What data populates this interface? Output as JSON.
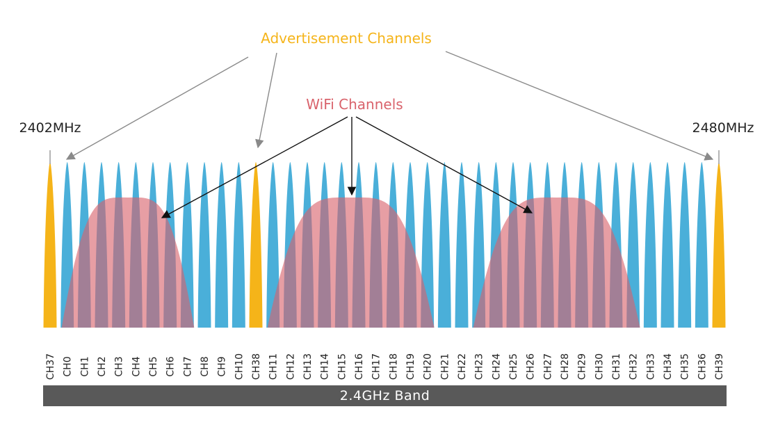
{
  "labels": {
    "advertisement": "Advertisement Channels",
    "wifi": "WiFi Channels",
    "freq_left": "2402MHz",
    "freq_right": "2480MHz",
    "band": "2.4GHz Band"
  },
  "colors": {
    "advertisement": "#f5b419",
    "data_channel": "#4aafd9",
    "wifi": "#8a4a60",
    "wifi_label": "#d9636c",
    "band_bar": "#595959",
    "text": "#222222"
  },
  "channels": [
    {
      "label": "CH37",
      "type": "advertisement"
    },
    {
      "label": "CH0",
      "type": "data"
    },
    {
      "label": "CH1",
      "type": "data"
    },
    {
      "label": "CH2",
      "type": "data"
    },
    {
      "label": "CH3",
      "type": "data"
    },
    {
      "label": "CH4",
      "type": "data"
    },
    {
      "label": "CH5",
      "type": "data"
    },
    {
      "label": "CH6",
      "type": "data"
    },
    {
      "label": "CH7",
      "type": "data"
    },
    {
      "label": "CH8",
      "type": "data"
    },
    {
      "label": "CH9",
      "type": "data"
    },
    {
      "label": "CH10",
      "type": "data"
    },
    {
      "label": "CH38",
      "type": "advertisement"
    },
    {
      "label": "CH11",
      "type": "data"
    },
    {
      "label": "CH12",
      "type": "data"
    },
    {
      "label": "CH13",
      "type": "data"
    },
    {
      "label": "CH14",
      "type": "data"
    },
    {
      "label": "CH15",
      "type": "data"
    },
    {
      "label": "CH16",
      "type": "data"
    },
    {
      "label": "CH17",
      "type": "data"
    },
    {
      "label": "CH18",
      "type": "data"
    },
    {
      "label": "CH19",
      "type": "data"
    },
    {
      "label": "CH20",
      "type": "data"
    },
    {
      "label": "CH21",
      "type": "data"
    },
    {
      "label": "CH22",
      "type": "data"
    },
    {
      "label": "CH23",
      "type": "data"
    },
    {
      "label": "CH24",
      "type": "data"
    },
    {
      "label": "CH25",
      "type": "data"
    },
    {
      "label": "CH26",
      "type": "data"
    },
    {
      "label": "CH27",
      "type": "data"
    },
    {
      "label": "CH28",
      "type": "data"
    },
    {
      "label": "CH29",
      "type": "data"
    },
    {
      "label": "CH30",
      "type": "data"
    },
    {
      "label": "CH31",
      "type": "data"
    },
    {
      "label": "CH32",
      "type": "data"
    },
    {
      "label": "CH33",
      "type": "data"
    },
    {
      "label": "CH34",
      "type": "data"
    },
    {
      "label": "CH35",
      "type": "data"
    },
    {
      "label": "CH36",
      "type": "data"
    },
    {
      "label": "CH39",
      "type": "advertisement"
    }
  ]
}
